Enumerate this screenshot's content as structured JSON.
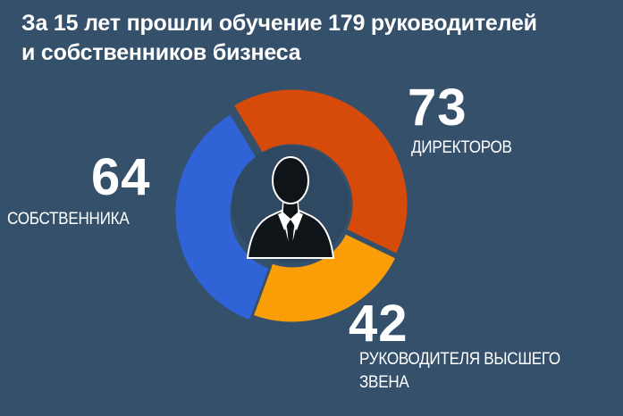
{
  "title": {
    "line1": "За 15 лет прошли обучение 179 руководителей",
    "line2": "и собственников бизнеса"
  },
  "colors": {
    "background": "#34506b",
    "directors": "#d64a0a",
    "top_managers": "#fb9d06",
    "owners": "#2f63d6",
    "center": "#2f4962",
    "silhouette": "#0f1418"
  },
  "center_icon": "businessman-silhouette-icon",
  "chart_data": {
    "type": "pie",
    "variant": "donut",
    "slices": [
      {
        "value": 73,
        "label": "ДИРЕКТОРОВ",
        "color": "#d64a0a"
      },
      {
        "value": 42,
        "label_lines": [
          "РУКОВОДИТЕЛЯ ВЫСШЕГО",
          "ЗВЕНА"
        ],
        "color": "#fb9d06"
      },
      {
        "value": 64,
        "label": "СОБСТВЕННИКА",
        "color": "#2f63d6"
      }
    ]
  }
}
